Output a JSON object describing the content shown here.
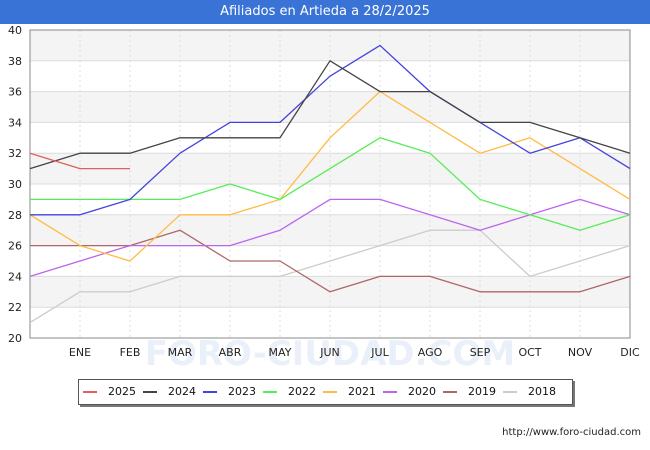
{
  "header": {
    "title": "Afiliados en Artieda a 28/2/2025"
  },
  "chart_data": {
    "type": "line",
    "title": "Afiliados en Artieda a 28/2/2025",
    "xlabel": "",
    "ylabel": "",
    "categories": [
      "",
      "ENE",
      "FEB",
      "MAR",
      "ABR",
      "MAY",
      "JUN",
      "JUL",
      "AGO",
      "SEP",
      "OCT",
      "NOV",
      "DIC"
    ],
    "ylim": [
      20,
      40
    ],
    "yticks": [
      20,
      22,
      24,
      26,
      28,
      30,
      32,
      34,
      36,
      38,
      40
    ],
    "grid": true,
    "legend_position": "bottom",
    "series": [
      {
        "name": "2025",
        "color": "#e06060",
        "values": [
          32,
          31,
          31,
          null,
          null,
          null,
          null,
          null,
          null,
          null,
          null,
          null,
          null
        ]
      },
      {
        "name": "2024",
        "color": "#444444",
        "values": [
          31,
          32,
          32,
          33,
          33,
          33,
          38,
          36,
          36,
          34,
          34,
          33,
          32
        ]
      },
      {
        "name": "2023",
        "color": "#4444dd",
        "values": [
          28,
          28,
          29,
          32,
          34,
          34,
          37,
          39,
          36,
          34,
          32,
          33,
          31
        ]
      },
      {
        "name": "2022",
        "color": "#55ee55",
        "values": [
          29,
          29,
          29,
          29,
          30,
          29,
          31,
          33,
          32,
          29,
          28,
          27,
          28
        ]
      },
      {
        "name": "2021",
        "color": "#ffbb44",
        "values": [
          28,
          26,
          25,
          28,
          28,
          29,
          33,
          36,
          34,
          32,
          33,
          31,
          29
        ]
      },
      {
        "name": "2020",
        "color": "#bb66ee",
        "values": [
          24,
          25,
          26,
          26,
          26,
          27,
          29,
          29,
          28,
          27,
          28,
          29,
          28
        ]
      },
      {
        "name": "2019",
        "color": "#b06666",
        "values": [
          26,
          26,
          26,
          27,
          25,
          25,
          23,
          24,
          24,
          23,
          23,
          23,
          24
        ]
      },
      {
        "name": "2018",
        "color": "#cccccc",
        "values": [
          21,
          23,
          23,
          24,
          24,
          24,
          25,
          26,
          27,
          27,
          24,
          25,
          26
        ]
      }
    ]
  },
  "footer": {
    "url": "http://www.foro-ciudad.com"
  }
}
